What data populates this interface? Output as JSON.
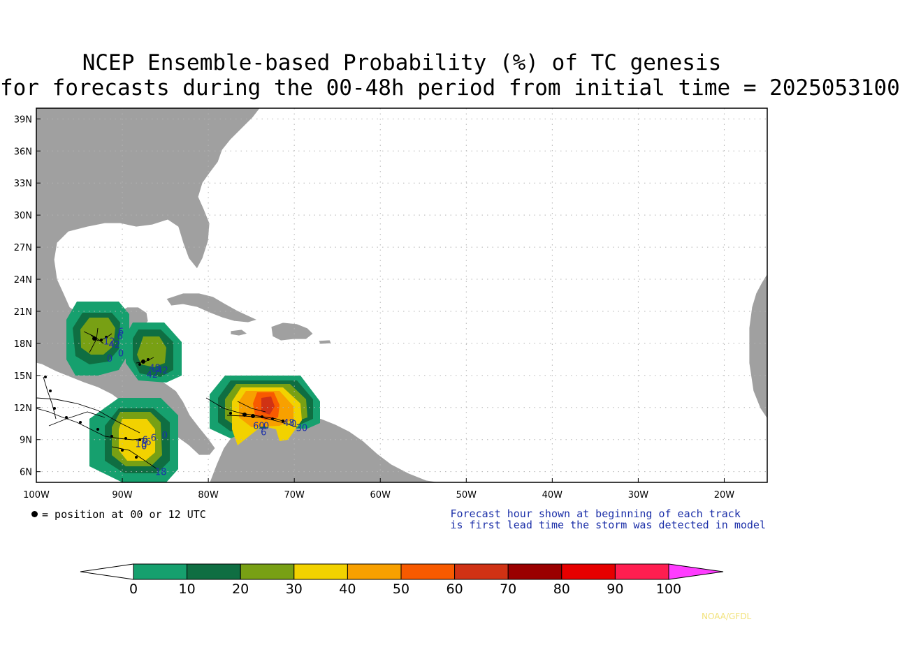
{
  "title_line1": "NCEP Ensemble-based Probability (%) of TC genesis",
  "title_line2": "for forecasts during the 00-48h period from initial time = 2025053100",
  "map": {
    "lat_labels": [
      "39N",
      "36N",
      "33N",
      "30N",
      "27N",
      "24N",
      "21N",
      "18N",
      "15N",
      "12N",
      "9N",
      "6N"
    ],
    "lat_values": [
      39,
      36,
      33,
      30,
      27,
      24,
      21,
      18,
      15,
      12,
      9,
      6
    ],
    "lon_labels": [
      "100W",
      "90W",
      "80W",
      "70W",
      "60W",
      "50W",
      "40W",
      "30W",
      "20W"
    ],
    "lon_values": [
      -100,
      -90,
      -80,
      -70,
      -60,
      -50,
      -40,
      -30,
      -20
    ],
    "lat_range": [
      5,
      40
    ],
    "lon_range": [
      -100,
      -15
    ],
    "land_color": "#a0a0a0",
    "grid": "dotted",
    "track_labels": [
      {
        "text": "6",
        "lon": -90.5,
        "lat": 18.8
      },
      {
        "text": "6",
        "lon": -90.6,
        "lat": 18.4
      },
      {
        "text": "12",
        "lon": -92.2,
        "lat": 17.9
      },
      {
        "text": "42",
        "lon": -91.6,
        "lat": 17.6
      },
      {
        "text": "0",
        "lon": -90.5,
        "lat": 16.8
      },
      {
        "text": "0",
        "lon": -91.8,
        "lat": 16.3
      },
      {
        "text": "48",
        "lon": -86.9,
        "lat": 15.4
      },
      {
        "text": "42",
        "lon": -86.0,
        "lat": 15.2
      },
      {
        "text": "42",
        "lon": -87.2,
        "lat": 14.8
      },
      {
        "text": "0",
        "lon": -85.4,
        "lat": 9.1
      },
      {
        "text": "6",
        "lon": -86.7,
        "lat": 8.9
      },
      {
        "text": "6",
        "lon": -87.7,
        "lat": 8.7
      },
      {
        "text": "6",
        "lon": -87.3,
        "lat": 8.5
      },
      {
        "text": "18",
        "lon": -88.5,
        "lat": 8.3
      },
      {
        "text": "0",
        "lon": -87.8,
        "lat": 8.1
      },
      {
        "text": "18",
        "lon": -86.2,
        "lat": 5.7
      },
      {
        "text": "60",
        "lon": -74.8,
        "lat": 10.0
      },
      {
        "text": "0",
        "lon": -73.6,
        "lat": 10.0
      },
      {
        "text": "6",
        "lon": -73.9,
        "lat": 9.4
      },
      {
        "text": "48",
        "lon": -71.3,
        "lat": 10.3
      },
      {
        "text": "30",
        "lon": -69.8,
        "lat": 9.8
      },
      {
        "text": "0",
        "lon": -70.4,
        "lat": 10.2
      }
    ]
  },
  "legend": {
    "dot_text": "= position at 00 or 12 UTC",
    "note_line1": "Forecast hour shown at beginning of each track",
    "note_line2": "is first lead time the storm was detected in model"
  },
  "colorbar": {
    "labels": [
      "0",
      "10",
      "20",
      "30",
      "40",
      "50",
      "60",
      "70",
      "80",
      "90",
      "100"
    ],
    "colors": [
      "#16a06e",
      "#0f6e42",
      "#78a014",
      "#f2d200",
      "#f8a000",
      "#f85a00",
      "#d03214",
      "#9a0000",
      "#e60000",
      "#ff1e50"
    ],
    "under_color": "#ffffff",
    "over_color": "#ff3cff"
  },
  "credit": "NOAA/GFDL"
}
